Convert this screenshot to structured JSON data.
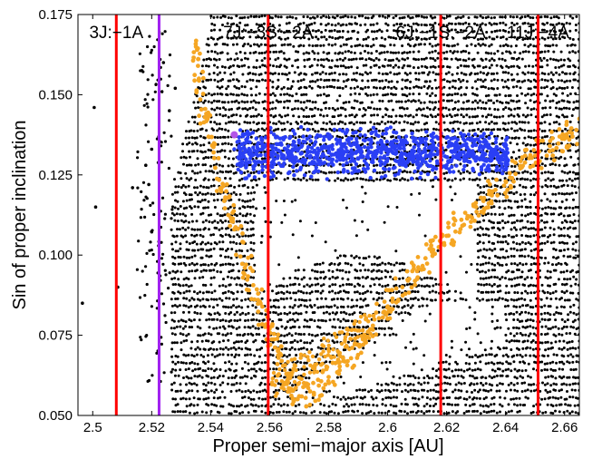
{
  "chart_data": {
    "type": "scatter",
    "title": "",
    "xlabel": "Proper semi−major axis [AU]",
    "ylabel": "Sin of proper inclination",
    "xlim": [
      2.495,
      2.665
    ],
    "ylim": [
      0.05,
      0.175
    ],
    "x_ticks": [
      2.5,
      2.52,
      2.54,
      2.56,
      2.58,
      2.6,
      2.62,
      2.64,
      2.66
    ],
    "x_tick_labels": [
      "2.5",
      "2.52",
      "2.54",
      "2.56",
      "2.58",
      "2.6",
      "2.62",
      "2.64",
      "2.66"
    ],
    "y_ticks": [
      0.05,
      0.075,
      0.1,
      0.125,
      0.15,
      0.175
    ],
    "y_tick_labels": [
      "0.050",
      "0.075",
      "0.100",
      "0.125",
      "0.150",
      "0.175"
    ],
    "grid": false,
    "legend": "none",
    "resonances": [
      {
        "label": "3J:−1A",
        "a": 2.508,
        "color": "#ff0000"
      },
      {
        "label": "",
        "a": 2.5225,
        "color": "#a020f0"
      },
      {
        "label": "7J:−3S:−2A",
        "a": 2.5595,
        "color": "#ff0000"
      },
      {
        "label": "6J:−1S:−2A",
        "a": 2.618,
        "color": "#ff0000"
      },
      {
        "label": "11J:−4A",
        "a": 2.651,
        "color": "#ff0000"
      }
    ],
    "series": [
      {
        "color": "#000000",
        "description_values": "background asteroids",
        "x": [
          2.4965,
          2.5005,
          2.501,
          2.5085,
          2.5135,
          2.518,
          2.519,
          2.52,
          2.524,
          2.526,
          2.528,
          2.532,
          2.538,
          2.542,
          2.546,
          2.55,
          2.556,
          2.562,
          2.568,
          2.574,
          2.58,
          2.586,
          2.592,
          2.598,
          2.604,
          2.61,
          2.616,
          2.622,
          2.628,
          2.634,
          2.64,
          2.646,
          2.652,
          2.658,
          2.663
        ],
        "y": [
          0.085,
          0.146,
          0.115,
          0.09,
          0.121,
          0.128,
          0.122,
          0.133,
          0.16,
          0.145,
          0.152,
          0.166,
          0.168,
          0.17,
          0.165,
          0.16,
          0.158,
          0.152,
          0.149,
          0.148,
          0.15,
          0.151,
          0.149,
          0.147,
          0.15,
          0.152,
          0.154,
          0.158,
          0.16,
          0.162,
          0.165,
          0.168,
          0.17,
          0.172,
          0.173
        ]
      },
      {
        "color": "#f5a623",
        "x": [
          2.535,
          2.536,
          2.538,
          2.541,
          2.545,
          2.548,
          2.552,
          2.556,
          2.56,
          2.563,
          2.566,
          2.57,
          2.575,
          2.58,
          2.585,
          2.59,
          2.595,
          2.6,
          2.605,
          2.61,
          2.615,
          2.62,
          2.625,
          2.63,
          2.635,
          2.64,
          2.645,
          2.65,
          2.655,
          2.66,
          2.664
        ],
        "y": [
          0.165,
          0.155,
          0.143,
          0.132,
          0.118,
          0.108,
          0.097,
          0.086,
          0.077,
          0.068,
          0.061,
          0.056,
          0.057,
          0.062,
          0.067,
          0.072,
          0.078,
          0.084,
          0.09,
          0.095,
          0.101,
          0.106,
          0.111,
          0.115,
          0.119,
          0.123,
          0.127,
          0.131,
          0.134,
          0.137,
          0.139
        ]
      },
      {
        "color": "#2a3ff5",
        "x": [
          2.548,
          2.552,
          2.556,
          2.56,
          2.565,
          2.57,
          2.575,
          2.58,
          2.585,
          2.59,
          2.595,
          2.6,
          2.605,
          2.61,
          2.615,
          2.62,
          2.625,
          2.63,
          2.635,
          2.64
        ],
        "y": [
          0.133,
          0.136,
          0.131,
          0.134,
          0.13,
          0.135,
          0.129,
          0.133,
          0.128,
          0.134,
          0.131,
          0.13,
          0.135,
          0.129,
          0.133,
          0.128,
          0.132,
          0.13,
          0.131,
          0.128
        ]
      },
      {
        "color": "#b455e8",
        "x": [
          2.548
        ],
        "y": [
          0.1375
        ]
      }
    ]
  }
}
